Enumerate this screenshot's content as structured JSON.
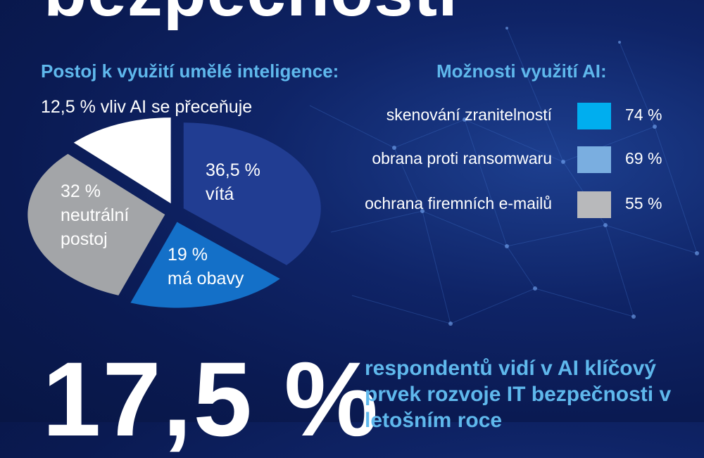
{
  "header": {
    "title": "bezpečnosti"
  },
  "chart_data": [
    {
      "type": "pie",
      "title": "Postoj k využití umělé inteligence:",
      "slices": [
        {
          "value": 36.5,
          "pct_label": "36,5 %",
          "desc": "vítá",
          "color": "#213d92"
        },
        {
          "value": 19,
          "pct_label": "19 %",
          "desc": "má obavy",
          "color": "#1470c8"
        },
        {
          "value": 32,
          "pct_label": "32 %",
          "desc": "neutrální postoj",
          "color": "#a3a5a8"
        },
        {
          "value": 12.5,
          "pct_label": "12,5 %",
          "desc": "vliv AI se přeceňuje",
          "color": "#ffffff"
        }
      ],
      "outside_label": "12,5 % vliv AI se přeceňuje"
    },
    {
      "type": "bar",
      "title": "Možnosti využití AI:",
      "categories": [
        "skenování zranitelností",
        "obrana proti ransomwaru",
        "ochrana firemních e-mailů"
      ],
      "values": [
        74,
        69,
        55
      ],
      "value_labels": [
        "74 %",
        "69 %",
        "55 %"
      ],
      "colors": [
        "#00aeef",
        "#7aaee0",
        "#b8b9bb"
      ]
    }
  ],
  "highlight": {
    "number": "17,5 %",
    "text": "respondentů vidí v AI klíčový prvek rozvoje IT bezpečnosti v letošním roce"
  }
}
